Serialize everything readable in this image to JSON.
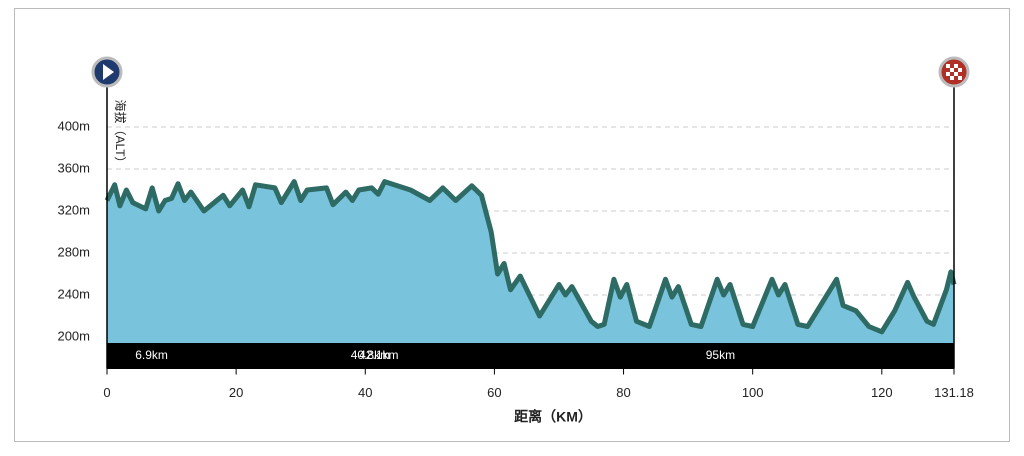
{
  "chart_data": {
    "type": "area",
    "y_label": "海拔（ALT）",
    "x_label": "距离（KM）",
    "x": [
      0,
      1.2,
      2,
      3,
      4,
      6,
      7,
      8,
      9,
      10,
      11,
      12,
      13,
      15,
      18,
      19,
      21,
      22,
      23,
      26,
      27,
      29,
      30,
      31,
      34,
      35,
      37,
      38,
      39,
      41,
      42,
      43,
      47,
      50,
      52,
      54,
      56.5,
      58,
      59.5,
      60.5,
      61.5,
      62.5,
      64,
      67,
      70,
      71,
      72,
      75,
      76,
      77,
      78.5,
      79.5,
      80.5,
      82,
      84,
      86.5,
      87.5,
      88.5,
      90.5,
      92,
      94.5,
      95.5,
      96.5,
      98.5,
      100,
      103,
      104,
      105,
      107,
      108.5,
      113,
      114,
      116,
      118,
      120,
      122,
      124,
      125,
      127,
      128,
      130,
      130.7,
      131.18
    ],
    "values": [
      330,
      345,
      325,
      340,
      328,
      322,
      342,
      320,
      330,
      332,
      346,
      330,
      338,
      320,
      335,
      325,
      340,
      324,
      345,
      342,
      328,
      348,
      330,
      340,
      342,
      326,
      338,
      330,
      340,
      342,
      336,
      348,
      340,
      330,
      342,
      330,
      344,
      335,
      300,
      260,
      270,
      245,
      258,
      220,
      250,
      240,
      248,
      215,
      210,
      212,
      255,
      238,
      250,
      215,
      210,
      255,
      238,
      248,
      212,
      210,
      255,
      240,
      250,
      212,
      210,
      255,
      240,
      250,
      212,
      210,
      255,
      230,
      225,
      210,
      205,
      225,
      252,
      238,
      215,
      212,
      245,
      262,
      250
    ],
    "fill": "#79c3dc",
    "line_color": "#2e6b64",
    "xlim": [
      0,
      131.18
    ],
    "ylim": [
      170,
      430
    ],
    "xticks": [
      0,
      20,
      40,
      60,
      80,
      100,
      120,
      131.18
    ],
    "yticks": [
      {
        "value": 200,
        "label": "200m"
      },
      {
        "value": 240,
        "label": "240m"
      },
      {
        "value": 280,
        "label": "280m"
      },
      {
        "value": 320,
        "label": "320m"
      },
      {
        "value": 360,
        "label": "360m"
      },
      {
        "value": 400,
        "label": "400m"
      }
    ],
    "grid": true,
    "markers": [
      {
        "km": 6.9,
        "label": "6.9km"
      },
      {
        "km": 40.8,
        "label": "40.8km"
      },
      {
        "km": 42.1,
        "label": "42.1km"
      },
      {
        "km": 95,
        "label": "95km"
      }
    ]
  }
}
